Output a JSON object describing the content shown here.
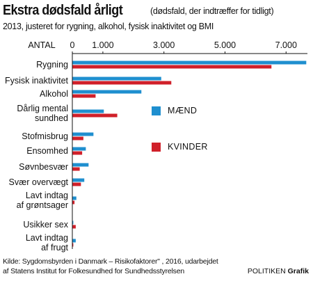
{
  "header": {
    "title": "Ekstra dødsfald årligt",
    "title_note": "(dødsfald, der indtræffer for tidligt)",
    "subtitle": "2013, justeret for rygning, alkohol, fysisk inaktivitet og BMI"
  },
  "footer": {
    "source_line1": "Kilde: Sygdomsbyrden i Danmark – Risikofaktorer\" , 2016, udarbejdet",
    "source_line2": "af Statens Institut for Folkesundhed for Sundhedsstyrelsen",
    "credit_name": "POLITIKEN",
    "credit_suffix": "Grafik"
  },
  "chart_data": {
    "type": "bar",
    "orientation": "horizontal",
    "axis_label": "ANTAL",
    "ticks": [
      0,
      1000,
      3000,
      5000,
      7000
    ],
    "tick_labels": [
      "0",
      "1.000",
      "3.000",
      "5.000",
      "7.000"
    ],
    "xlim": [
      0,
      7700
    ],
    "grid": false,
    "legend_placement": "center-right",
    "categories": [
      [
        "Rygning"
      ],
      [
        "Fysisk inaktivitet"
      ],
      [
        "Alkohol"
      ],
      [
        "Dårlig mental",
        "sundhed"
      ],
      [
        "Stofmisbrug"
      ],
      [
        "Ensomhed"
      ],
      [
        "Søvnbesvær"
      ],
      [
        "Svær overvægt"
      ],
      [
        "Lavt indtag",
        "af grøntsager"
      ],
      [
        "Usikker sex"
      ],
      [
        "Lavt indtag",
        "af frugt"
      ]
    ],
    "series": [
      {
        "name": "MÆND",
        "color": "#1f8fcf",
        "values": [
          7650,
          2900,
          2250,
          1020,
          680,
          430,
          520,
          380,
          120,
          20,
          100
        ]
      },
      {
        "name": "KVINDER",
        "color": "#d0202a",
        "values": [
          6510,
          3230,
          750,
          1460,
          350,
          310,
          230,
          270,
          60,
          100,
          20
        ]
      }
    ]
  }
}
